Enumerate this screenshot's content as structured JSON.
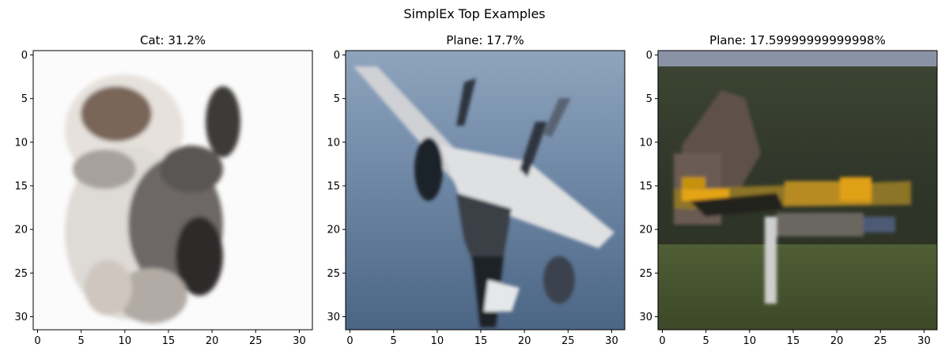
{
  "figure": {
    "suptitle": "SimplEx Top Examples"
  },
  "chart_data": [
    {
      "type": "image",
      "title": "Cat: 31.2%",
      "xticks": [
        "0",
        "5",
        "10",
        "15",
        "20",
        "25",
        "30"
      ],
      "yticks": [
        "0",
        "5",
        "10",
        "15",
        "20",
        "25",
        "30"
      ],
      "xlim": [
        -0.5,
        31.5
      ],
      "ylim": [
        31.5,
        -0.5
      ],
      "grid": false
    },
    {
      "type": "image",
      "title": "Plane: 17.7%",
      "xticks": [
        "0",
        "5",
        "10",
        "15",
        "20",
        "25",
        "30"
      ],
      "yticks": [
        "0",
        "5",
        "10",
        "15",
        "20",
        "25",
        "30"
      ],
      "xlim": [
        -0.5,
        31.5
      ],
      "ylim": [
        31.5,
        -0.5
      ],
      "grid": false
    },
    {
      "type": "image",
      "title": "Plane: 17.59999999999998%",
      "xticks": [
        "0",
        "5",
        "10",
        "15",
        "20",
        "25",
        "30"
      ],
      "yticks": [
        "0",
        "5",
        "10",
        "15",
        "20",
        "25",
        "30"
      ],
      "xlim": [
        -0.5,
        31.5
      ],
      "ylim": [
        31.5,
        -0.5
      ],
      "grid": false
    }
  ]
}
